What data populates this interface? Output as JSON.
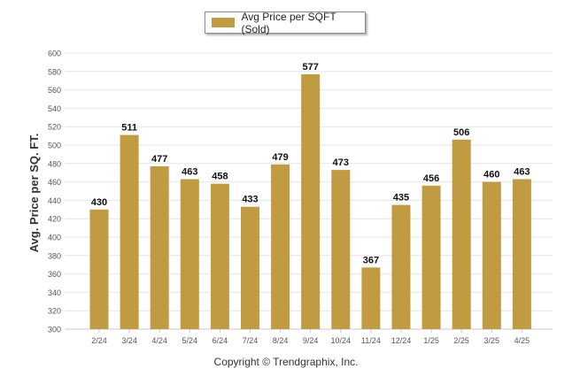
{
  "legend": {
    "label": "Avg Price per SQFT (Sold)"
  },
  "footer": {
    "text": "Copyright © Trendgraphix, Inc."
  },
  "chart_data": {
    "type": "bar",
    "title": "",
    "xlabel": "",
    "ylabel": "Avg. Price per SQ. FT.",
    "ylim": [
      300,
      600
    ],
    "ytick_step": 20,
    "grid": true,
    "legend_position": "top-center",
    "bar_color": "#c19b41",
    "categories": [
      "2/24",
      "3/24",
      "4/24",
      "5/24",
      "6/24",
      "7/24",
      "8/24",
      "9/24",
      "10/24",
      "11/24",
      "12/24",
      "1/25",
      "2/25",
      "3/25",
      "4/25"
    ],
    "series": [
      {
        "name": "Avg Price per SQFT (Sold)",
        "values": [
          430,
          511,
          477,
          463,
          458,
          433,
          479,
          577,
          473,
          367,
          435,
          456,
          506,
          460,
          463
        ]
      }
    ]
  }
}
